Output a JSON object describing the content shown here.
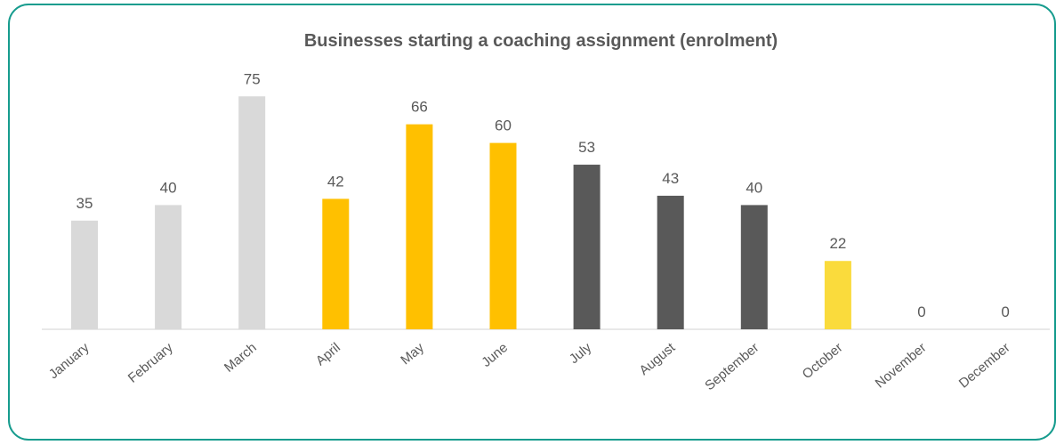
{
  "chart_data": {
    "type": "bar",
    "title": "Businesses starting a coaching assignment (enrolment)",
    "categories": [
      "January",
      "February",
      "March",
      "April",
      "May",
      "June",
      "July",
      "August",
      "September",
      "October",
      "November",
      "December"
    ],
    "values": [
      35,
      40,
      75,
      42,
      66,
      60,
      53,
      43,
      40,
      22,
      0,
      0
    ],
    "colors": [
      "#d9d9d9",
      "#d9d9d9",
      "#d9d9d9",
      "#ffc000",
      "#ffc000",
      "#ffc000",
      "#595959",
      "#595959",
      "#595959",
      "#fadb3c",
      "#fadb3c",
      "#fadb3c"
    ]
  }
}
